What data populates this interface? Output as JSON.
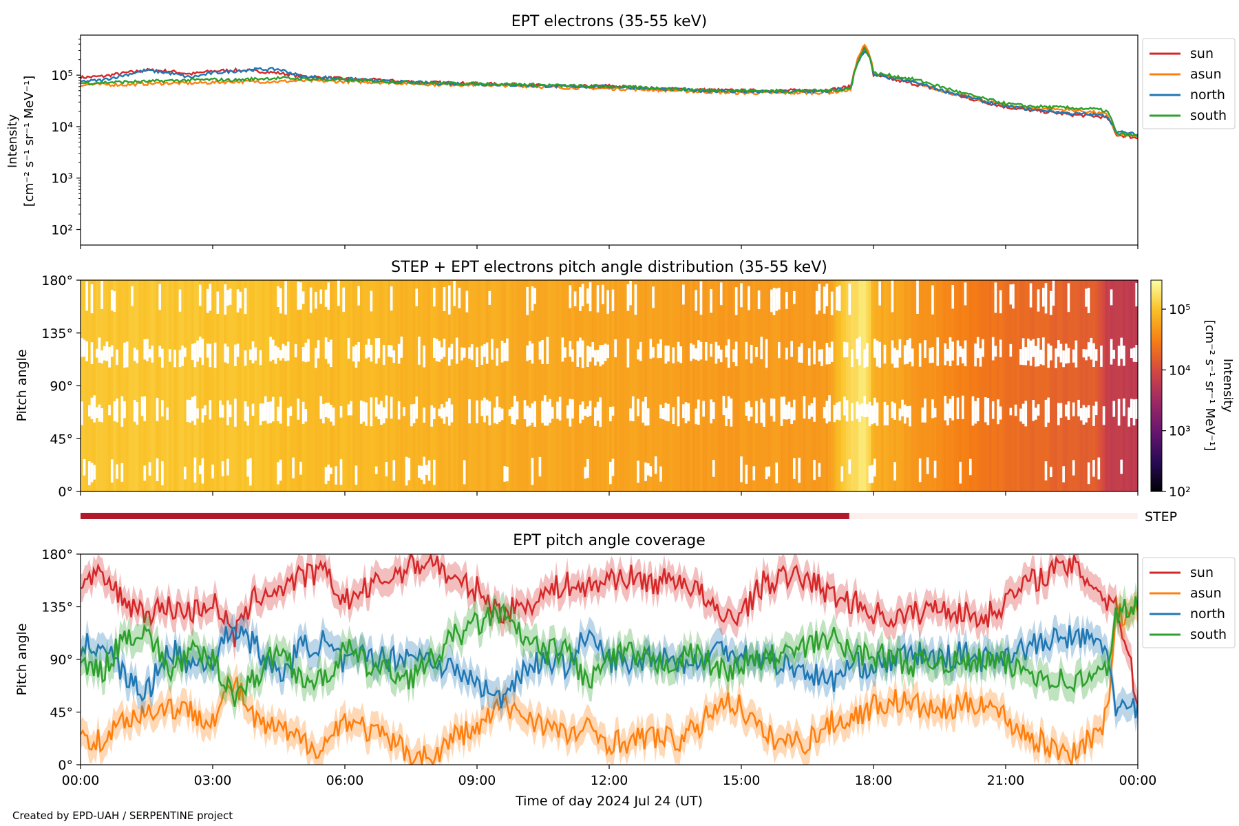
{
  "chart_data": [
    {
      "type": "line",
      "title": "EPT electrons (35-55 keV)",
      "ylabel_line1": "Intensity",
      "ylabel_line2": "[cm⁻² s⁻¹ sr⁻¹ MeV⁻¹]",
      "yscale": "log",
      "ylim": [
        50,
        600000
      ],
      "yticks": [
        {
          "value": 100,
          "label": "10²"
        },
        {
          "value": 1000,
          "label": "10³"
        },
        {
          "value": 10000,
          "label": "10⁴"
        },
        {
          "value": 100000,
          "label": "10⁵"
        }
      ],
      "xlim_hours": [
        0,
        24
      ],
      "legend_position": "outside-top-right",
      "colors": {
        "sun": "#d62728",
        "asun": "#ff7f0e",
        "north": "#1f77b4",
        "south": "#2ca02c"
      },
      "legend": [
        "sun",
        "asun",
        "north",
        "south"
      ],
      "series": [
        {
          "name": "sun",
          "x_hours": [
            0,
            0.5,
            1,
            1.5,
            2,
            2.5,
            3,
            3.5,
            4,
            4.5,
            5,
            6,
            7,
            8,
            9,
            10,
            11,
            12,
            13,
            14,
            15,
            16,
            17,
            17.5,
            17.8,
            17.9,
            18,
            18.5,
            19,
            19.5,
            20,
            20.5,
            21,
            21.5,
            22,
            22.5,
            23,
            23.3,
            23.5,
            24
          ],
          "values": [
            90000,
            95000,
            110000,
            125000,
            120000,
            105000,
            120000,
            125000,
            120000,
            110000,
            95000,
            85000,
            78000,
            72000,
            68000,
            65000,
            60000,
            62000,
            55000,
            52000,
            50000,
            50000,
            52000,
            60000,
            350000,
            250000,
            100000,
            80000,
            65000,
            50000,
            38000,
            30000,
            24000,
            21000,
            19000,
            17000,
            16000,
            15000,
            7000,
            6000
          ]
        },
        {
          "name": "asun",
          "x_hours": [
            0,
            0.5,
            1,
            1.5,
            2,
            2.5,
            3,
            3.5,
            4,
            4.5,
            5,
            6,
            7,
            8,
            9,
            10,
            11,
            12,
            13,
            14,
            15,
            16,
            17,
            17.5,
            17.8,
            17.9,
            18,
            18.5,
            19,
            19.5,
            20,
            20.5,
            21,
            21.5,
            22,
            22.5,
            23,
            23.3,
            23.5,
            24
          ],
          "values": [
            65000,
            66000,
            65000,
            68000,
            70000,
            70000,
            72000,
            75000,
            75000,
            75000,
            78000,
            75000,
            72000,
            66000,
            65000,
            62000,
            57000,
            55000,
            52000,
            48000,
            45000,
            45000,
            46000,
            52000,
            380000,
            260000,
            110000,
            85000,
            70000,
            52000,
            40000,
            32000,
            26000,
            23000,
            22000,
            21000,
            19000,
            17000,
            7000,
            6500
          ]
        },
        {
          "name": "north",
          "x_hours": [
            0,
            0.5,
            1,
            1.5,
            2,
            2.5,
            3,
            3.5,
            4,
            4.5,
            5,
            6,
            7,
            8,
            9,
            10,
            11,
            12,
            13,
            14,
            15,
            16,
            17,
            17.5,
            17.8,
            17.9,
            18,
            18.5,
            19,
            19.5,
            20,
            20.5,
            21,
            21.5,
            22,
            22.5,
            23,
            23.3,
            23.5,
            24
          ],
          "values": [
            75000,
            80000,
            100000,
            125000,
            110000,
            90000,
            110000,
            120000,
            130000,
            130000,
            95000,
            85000,
            75000,
            70000,
            67000,
            64000,
            60000,
            60000,
            55000,
            50000,
            48000,
            47000,
            49000,
            57000,
            300000,
            230000,
            100000,
            85000,
            70000,
            52000,
            40000,
            31000,
            25000,
            22000,
            20000,
            18000,
            17000,
            16000,
            8000,
            7000
          ]
        },
        {
          "name": "south",
          "x_hours": [
            0,
            0.5,
            1,
            1.5,
            2,
            2.5,
            3,
            3.5,
            4,
            4.5,
            5,
            6,
            7,
            8,
            9,
            10,
            11,
            12,
            13,
            14,
            15,
            16,
            17,
            17.5,
            17.8,
            17.9,
            18,
            18.5,
            19,
            19.5,
            20,
            20.5,
            21,
            21.5,
            22,
            22.5,
            23,
            23.3,
            23.5,
            24
          ],
          "values": [
            70000,
            72000,
            74000,
            75000,
            78000,
            80000,
            82000,
            80000,
            85000,
            88000,
            85000,
            80000,
            75000,
            70000,
            68000,
            66000,
            62000,
            60000,
            56000,
            52000,
            50000,
            49000,
            50000,
            55000,
            320000,
            240000,
            110000,
            95000,
            80000,
            60000,
            45000,
            35000,
            28000,
            25000,
            24000,
            23000,
            22000,
            20000,
            7500,
            6500
          ]
        }
      ]
    },
    {
      "type": "heatmap",
      "title": "STEP + EPT electrons pitch angle distribution (35-55 keV)",
      "ylabel": "Pitch angle",
      "ylim_deg": [
        0,
        180
      ],
      "yticks": [
        "0°",
        "45°",
        "90°",
        "135°",
        "180°"
      ],
      "colorbar_label_line1": "Intensity",
      "colorbar_label_line2": "[cm⁻² s⁻¹ sr⁻¹ MeV⁻¹]",
      "colorbar_scale": "log",
      "colorbar_range": [
        100,
        300000
      ],
      "colorbar_ticks": [
        {
          "value": 100,
          "label": "10²"
        },
        {
          "value": 1000,
          "label": "10³"
        },
        {
          "value": 10000,
          "label": "10⁴"
        },
        {
          "value": 100000,
          "label": "10⁵"
        }
      ],
      "colormap": "inferno",
      "time_hours": [
        0,
        1,
        2,
        3,
        4,
        5,
        6,
        7,
        8,
        9,
        10,
        11,
        12,
        13,
        14,
        15,
        16,
        17,
        17.8,
        18,
        19,
        20,
        21,
        22,
        23,
        23.3,
        24
      ],
      "intensity": [
        105000,
        110000,
        110000,
        100000,
        100000,
        90000,
        85000,
        80000,
        75000,
        70000,
        65000,
        62000,
        60000,
        55000,
        52000,
        50000,
        50000,
        50000,
        200000,
        70000,
        45000,
        30000,
        22000,
        18000,
        15000,
        7000,
        6000
      ]
    },
    {
      "type": "bar",
      "label": "STEP",
      "coverage_hours": [
        0,
        17.45
      ],
      "active_color": "#b2182b",
      "inactive_color": "#fdf0ec"
    },
    {
      "type": "line",
      "title": "EPT pitch angle coverage",
      "ylabel": "Pitch angle",
      "xlabel": "Time of day 2024 Jul 24 (UT)",
      "ylim_deg": [
        0,
        180
      ],
      "yticks": [
        "0°",
        "45°",
        "90°",
        "135°",
        "180°"
      ],
      "xticks": [
        "00:00",
        "03:00",
        "06:00",
        "09:00",
        "12:00",
        "15:00",
        "18:00",
        "21:00",
        "00:00"
      ],
      "xlim_hours": [
        0,
        24
      ],
      "legend_position": "outside-top-right",
      "legend": [
        "sun",
        "asun",
        "north",
        "south"
      ],
      "colors": {
        "sun": "#d62728",
        "asun": "#ff7f0e",
        "north": "#1f77b4",
        "south": "#2ca02c"
      },
      "series": [
        {
          "name": "sun",
          "x_hours": [
            0,
            0.5,
            1,
            1.5,
            2,
            2.5,
            3,
            3.5,
            4,
            4.5,
            5,
            5.5,
            6,
            6.5,
            7,
            7.5,
            8,
            8.5,
            9,
            9.5,
            10,
            10.5,
            11,
            11.5,
            12,
            12.5,
            13,
            13.5,
            14,
            14.5,
            15,
            15.5,
            16,
            16.5,
            17,
            17.5,
            18,
            18.5,
            19,
            19.5,
            20,
            20.5,
            21,
            21.5,
            22,
            22.5,
            23,
            23.3,
            23.5,
            24
          ],
          "values": [
            155,
            160,
            140,
            130,
            135,
            130,
            140,
            110,
            145,
            150,
            160,
            165,
            140,
            150,
            160,
            170,
            175,
            155,
            150,
            130,
            135,
            145,
            155,
            150,
            160,
            160,
            155,
            160,
            150,
            125,
            130,
            155,
            160,
            160,
            145,
            140,
            130,
            125,
            130,
            135,
            130,
            125,
            140,
            155,
            165,
            170,
            155,
            140,
            140,
            55
          ]
        },
        {
          "name": "asun",
          "x_hours": [
            0,
            0.5,
            1,
            1.5,
            2,
            2.5,
            3,
            3.5,
            4,
            4.5,
            5,
            5.5,
            6,
            6.5,
            7,
            7.5,
            8,
            8.5,
            9,
            9.5,
            10,
            10.5,
            11,
            11.5,
            12,
            12.5,
            13,
            13.5,
            14,
            14.5,
            15,
            15.5,
            16,
            16.5,
            17,
            17.5,
            18,
            18.5,
            19,
            19.5,
            20,
            20.5,
            21,
            21.5,
            22,
            22.5,
            23,
            23.3,
            23.5,
            24
          ],
          "values": [
            25,
            20,
            40,
            45,
            50,
            45,
            40,
            70,
            35,
            30,
            20,
            15,
            40,
            30,
            20,
            10,
            5,
            25,
            30,
            50,
            45,
            35,
            25,
            30,
            20,
            20,
            25,
            20,
            30,
            55,
            50,
            25,
            20,
            20,
            35,
            40,
            50,
            55,
            50,
            45,
            50,
            55,
            40,
            25,
            15,
            10,
            25,
            40,
            130,
            125
          ]
        },
        {
          "name": "north",
          "x_hours": [
            0,
            0.5,
            1,
            1.5,
            2,
            2.5,
            3,
            3.5,
            4,
            4.5,
            5,
            5.5,
            6,
            6.5,
            7,
            7.5,
            8,
            8.5,
            9,
            9.5,
            10,
            10.5,
            11,
            11.5,
            12,
            12.5,
            13,
            13.5,
            14,
            14.5,
            15,
            15.5,
            16,
            16.5,
            17,
            17.5,
            18,
            18.5,
            19,
            19.5,
            20,
            20.5,
            21,
            21.5,
            22,
            22.5,
            23,
            23.3,
            23.5,
            24
          ],
          "values": [
            100,
            105,
            75,
            60,
            100,
            85,
            90,
            120,
            100,
            75,
            100,
            105,
            85,
            95,
            90,
            95,
            90,
            80,
            70,
            55,
            80,
            90,
            85,
            110,
            90,
            85,
            95,
            90,
            85,
            100,
            95,
            90,
            85,
            80,
            70,
            85,
            85,
            90,
            95,
            90,
            95,
            90,
            95,
            100,
            105,
            110,
            105,
            100,
            50,
            45
          ]
        },
        {
          "name": "south",
          "x_hours": [
            0,
            0.5,
            1,
            1.5,
            2,
            2.5,
            3,
            3.5,
            4,
            4.5,
            5,
            5.5,
            6,
            6.5,
            7,
            7.5,
            8,
            8.5,
            9,
            9.5,
            10,
            10.5,
            11,
            11.5,
            12,
            12.5,
            13,
            13.5,
            14,
            14.5,
            15,
            15.5,
            16,
            16.5,
            17,
            17.5,
            18,
            18.5,
            19,
            19.5,
            20,
            20.5,
            21,
            21.5,
            22,
            22.5,
            23,
            23.3,
            23.5,
            24
          ],
          "values": [
            85,
            80,
            110,
            115,
            80,
            95,
            90,
            60,
            75,
            100,
            75,
            70,
            100,
            85,
            80,
            75,
            90,
            110,
            120,
            130,
            110,
            95,
            100,
            70,
            90,
            95,
            85,
            90,
            95,
            80,
            85,
            90,
            95,
            100,
            110,
            95,
            95,
            90,
            85,
            90,
            85,
            90,
            85,
            80,
            75,
            70,
            75,
            80,
            130,
            135
          ]
        }
      ]
    }
  ],
  "credit": "Created by EPD-UAH / SERPENTINE project"
}
